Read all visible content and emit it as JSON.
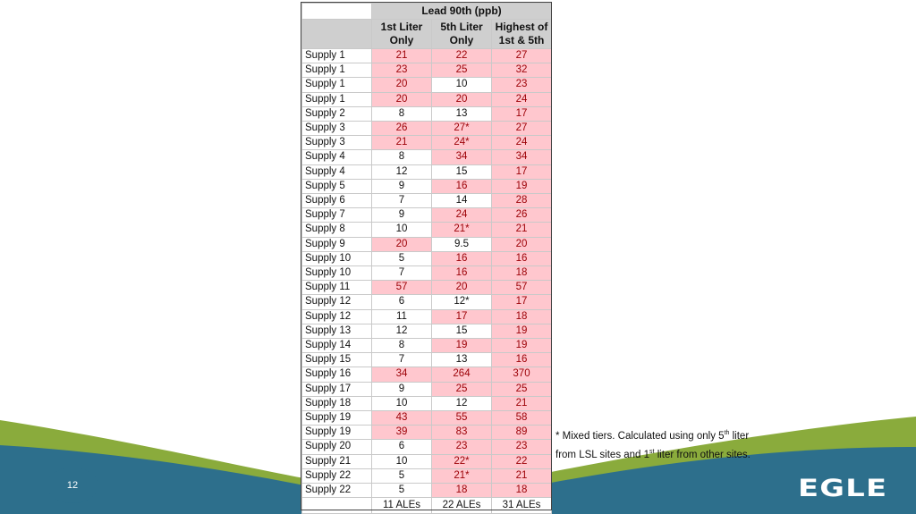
{
  "table": {
    "title": "Lead 90th (ppb)",
    "headers": [
      "1st Liter Only",
      "5th Liter Only",
      "Highest of 1st & 5th"
    ],
    "rows": [
      {
        "name": "Supply 1",
        "v1": "21",
        "v5": "22",
        "vh": "27",
        "h1": true,
        "h5": true,
        "hh": true
      },
      {
        "name": "Supply 1",
        "v1": "23",
        "v5": "25",
        "vh": "32",
        "h1": true,
        "h5": true,
        "hh": true
      },
      {
        "name": "Supply 1",
        "v1": "20",
        "v5": "10",
        "vh": "23",
        "h1": true,
        "h5": false,
        "hh": true
      },
      {
        "name": "Supply 1",
        "v1": "20",
        "v5": "20",
        "vh": "24",
        "h1": true,
        "h5": true,
        "hh": true
      },
      {
        "name": "Supply 2",
        "v1": "8",
        "v5": "13",
        "vh": "17",
        "h1": false,
        "h5": false,
        "hh": true
      },
      {
        "name": "Supply 3",
        "v1": "26",
        "v5": "27*",
        "vh": "27",
        "h1": true,
        "h5": true,
        "hh": true
      },
      {
        "name": "Supply 3",
        "v1": "21",
        "v5": "24*",
        "vh": "24",
        "h1": true,
        "h5": true,
        "hh": true
      },
      {
        "name": "Supply 4",
        "v1": "8",
        "v5": "34",
        "vh": "34",
        "h1": false,
        "h5": true,
        "hh": true
      },
      {
        "name": "Supply 4",
        "v1": "12",
        "v5": "15",
        "vh": "17",
        "h1": false,
        "h5": false,
        "hh": true
      },
      {
        "name": "Supply 5",
        "v1": "9",
        "v5": "16",
        "vh": "19",
        "h1": false,
        "h5": true,
        "hh": true
      },
      {
        "name": "Supply 6",
        "v1": "7",
        "v5": "14",
        "vh": "28",
        "h1": false,
        "h5": false,
        "hh": true
      },
      {
        "name": "Supply 7",
        "v1": "9",
        "v5": "24",
        "vh": "26",
        "h1": false,
        "h5": true,
        "hh": true
      },
      {
        "name": "Supply 8",
        "v1": "10",
        "v5": "21*",
        "vh": "21",
        "h1": false,
        "h5": true,
        "hh": true
      },
      {
        "name": "Supply 9",
        "v1": "20",
        "v5": "9.5",
        "vh": "20",
        "h1": true,
        "h5": false,
        "hh": true
      },
      {
        "name": "Supply 10",
        "v1": "5",
        "v5": "16",
        "vh": "16",
        "h1": false,
        "h5": true,
        "hh": true
      },
      {
        "name": "Supply 10",
        "v1": "7",
        "v5": "16",
        "vh": "18",
        "h1": false,
        "h5": true,
        "hh": true
      },
      {
        "name": "Supply 11",
        "v1": "57",
        "v5": "20",
        "vh": "57",
        "h1": true,
        "h5": true,
        "hh": true
      },
      {
        "name": "Supply 12",
        "v1": "6",
        "v5": "12*",
        "vh": "17",
        "h1": false,
        "h5": false,
        "hh": true
      },
      {
        "name": "Supply 12",
        "v1": "11",
        "v5": "17",
        "vh": "18",
        "h1": false,
        "h5": true,
        "hh": true
      },
      {
        "name": "Supply 13",
        "v1": "12",
        "v5": "15",
        "vh": "19",
        "h1": false,
        "h5": false,
        "hh": true
      },
      {
        "name": "Supply 14",
        "v1": "8",
        "v5": "19",
        "vh": "19",
        "h1": false,
        "h5": true,
        "hh": true
      },
      {
        "name": "Supply 15",
        "v1": "7",
        "v5": "13",
        "vh": "16",
        "h1": false,
        "h5": false,
        "hh": true
      },
      {
        "name": "Supply 16",
        "v1": "34",
        "v5": "264",
        "vh": "370",
        "h1": true,
        "h5": true,
        "hh": true
      },
      {
        "name": "Supply 17",
        "v1": "9",
        "v5": "25",
        "vh": "25",
        "h1": false,
        "h5": true,
        "hh": true
      },
      {
        "name": "Supply 18",
        "v1": "10",
        "v5": "12",
        "vh": "21",
        "h1": false,
        "h5": false,
        "hh": true
      },
      {
        "name": "Supply 19",
        "v1": "43",
        "v5": "55",
        "vh": "58",
        "h1": true,
        "h5": true,
        "hh": true
      },
      {
        "name": "Supply 19",
        "v1": "39",
        "v5": "83",
        "vh": "89",
        "h1": true,
        "h5": true,
        "hh": true
      },
      {
        "name": "Supply 20",
        "v1": "6",
        "v5": "23",
        "vh": "23",
        "h1": false,
        "h5": true,
        "hh": true
      },
      {
        "name": "Supply 21",
        "v1": "10",
        "v5": "22*",
        "vh": "22",
        "h1": false,
        "h5": true,
        "hh": true
      },
      {
        "name": "Supply 22",
        "v1": "5",
        "v5": "21*",
        "vh": "21",
        "h1": false,
        "h5": true,
        "hh": true
      },
      {
        "name": "Supply 22",
        "v1": "5",
        "v5": "18",
        "vh": "18",
        "h1": false,
        "h5": true,
        "hh": true
      }
    ],
    "footer": [
      "11 ALEs",
      "22 ALEs",
      "31 ALEs"
    ]
  },
  "footnote": {
    "part1": "* Mixed tiers.  Calculated using only 5",
    "sup1": "th",
    "part2": " liter",
    "part3": "from LSL sites and 1",
    "sup2": "st",
    "part4": " liter from other sites."
  },
  "page_number": "12",
  "logo": "EGLE",
  "colors": {
    "highlight_fill": "#ffc7ce",
    "highlight_text": "#9c0006",
    "header_fill": "#cfcfcf",
    "wave_blue": "#2d6f8c",
    "wave_green": "#8aab3c"
  }
}
